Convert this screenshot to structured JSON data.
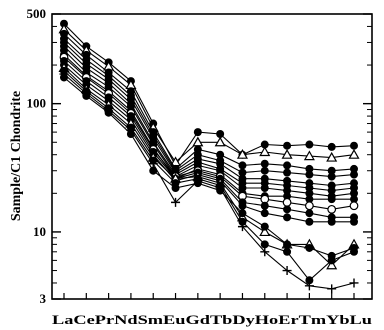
{
  "chart_data": {
    "type": "line",
    "ylabel": "Sample/C1 Chondrite",
    "xlabel": "",
    "y_scale": "log",
    "ylim": [
      3,
      500
    ],
    "y_ticks": [
      3,
      10,
      100,
      500
    ],
    "categories": [
      "La",
      "Ce",
      "Pr",
      "Nd",
      "Sm",
      "Eu",
      "Gd",
      "Tb",
      "Dy",
      "Ho",
      "Er",
      "Tm",
      "Yb",
      "Lu"
    ],
    "category_label_text": "LaCePrNdSmEuGdTbDyHoErTmYbLu",
    "line_color": "#000000",
    "series": [
      {
        "marker": "circle",
        "values": [
          420,
          280,
          210,
          150,
          70,
          33,
          60,
          58,
          40,
          48,
          47,
          48,
          46,
          47
        ]
      },
      {
        "marker": "triangle",
        "values": [
          380,
          260,
          195,
          140,
          65,
          35,
          50,
          50,
          40,
          42,
          40,
          39,
          38,
          40
        ]
      },
      {
        "marker": "circle",
        "values": [
          350,
          240,
          175,
          125,
          60,
          31,
          44,
          40,
          33,
          34,
          33,
          31,
          30,
          31
        ]
      },
      {
        "marker": "circle",
        "values": [
          320,
          220,
          165,
          115,
          57,
          30,
          40,
          36,
          29,
          30,
          29,
          28,
          27,
          28
        ]
      },
      {
        "marker": "circle",
        "values": [
          300,
          205,
          155,
          108,
          54,
          29,
          37,
          34,
          26,
          26,
          25,
          24,
          23,
          24
        ]
      },
      {
        "marker": "circle",
        "values": [
          280,
          190,
          145,
          100,
          50,
          28,
          35,
          31,
          24,
          24,
          23,
          22,
          21,
          22
        ]
      },
      {
        "marker": "circle",
        "values": [
          260,
          175,
          135,
          95,
          48,
          27,
          33,
          30,
          22,
          22,
          21,
          20,
          19,
          20
        ]
      },
      {
        "marker": "circle",
        "values": [
          240,
          165,
          125,
          88,
          45,
          26,
          31,
          28,
          20,
          19,
          19,
          18,
          18,
          18
        ]
      },
      {
        "marker": "open-circle",
        "values": [
          230,
          160,
          120,
          84,
          44,
          27,
          30,
          27,
          19,
          18,
          17,
          16,
          15,
          16
        ]
      },
      {
        "marker": "circle",
        "values": [
          215,
          150,
          112,
          80,
          42,
          26,
          29,
          26,
          17,
          16,
          15,
          14,
          13,
          13
        ]
      },
      {
        "marker": "circle",
        "values": [
          200,
          140,
          105,
          75,
          40,
          25,
          28,
          25,
          16,
          14,
          13,
          12,
          12,
          12
        ]
      },
      {
        "marker": "triangle",
        "values": [
          190,
          130,
          98,
          70,
          38,
          26,
          27,
          24,
          13,
          10,
          8,
          8,
          5.5,
          8
        ]
      },
      {
        "marker": "circle",
        "values": [
          180,
          125,
          92,
          65,
          36,
          24,
          26,
          23,
          12,
          8,
          7,
          4.2,
          6,
          7
        ]
      },
      {
        "marker": "plus",
        "values": [
          170,
          120,
          88,
          62,
          34,
          17,
          25,
          22,
          11,
          7,
          5,
          3.8,
          3.6,
          4
        ]
      },
      {
        "marker": "circle",
        "values": [
          160,
          115,
          85,
          58,
          30,
          22,
          24,
          21,
          14,
          11,
          8,
          7.5,
          6.5,
          7.5
        ]
      }
    ]
  }
}
